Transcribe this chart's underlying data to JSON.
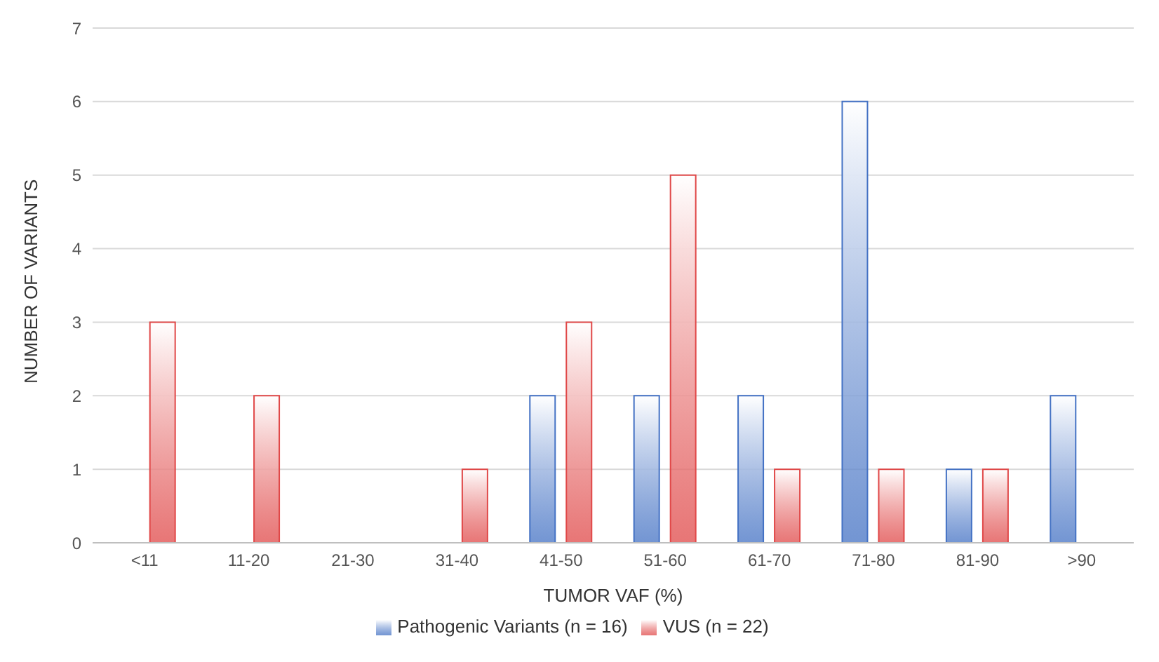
{
  "chart_data": {
    "type": "bar",
    "xlabel": "TUMOR VAF (%)",
    "ylabel": "NUMBER OF VARIANTS",
    "categories": [
      "<11",
      "11-20",
      "21-30",
      "31-40",
      "41-50",
      "51-60",
      "61-70",
      "71-80",
      "81-90",
      ">90"
    ],
    "series": [
      {
        "name": "Pathogenic Variants (n = 16)",
        "color": "#4472c4",
        "values": [
          0,
          0,
          0,
          0,
          2,
          2,
          2,
          6,
          1,
          2
        ]
      },
      {
        "name": "VUS (n = 22)",
        "color": "#e04848",
        "values": [
          3,
          2,
          0,
          1,
          3,
          5,
          1,
          1,
          1,
          0
        ]
      }
    ],
    "ylim": [
      0,
      7
    ],
    "yticks": [
      0,
      1,
      2,
      3,
      4,
      5,
      6,
      7
    ],
    "grid": "y",
    "legend": "bottom"
  }
}
